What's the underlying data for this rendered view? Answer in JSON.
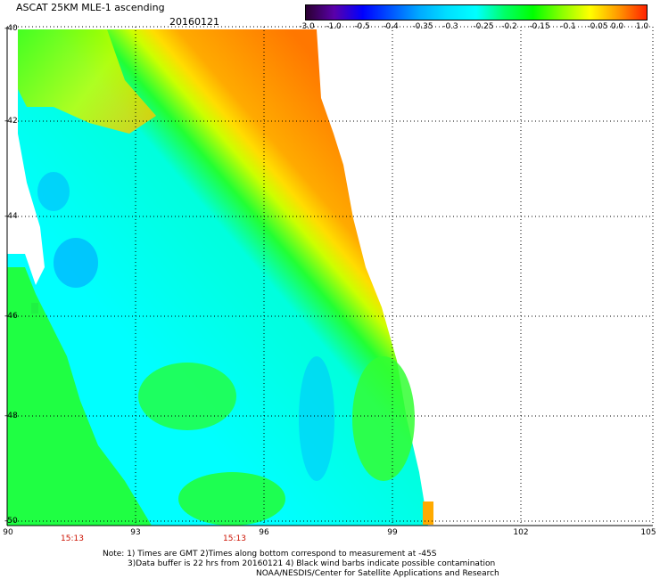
{
  "header": {
    "title": "ASCAT 25KM MLE-1 ascending",
    "date": "20160121"
  },
  "colorbar": {
    "labels": [
      "-3.0",
      "-1.0",
      "-0.5",
      "-0.4",
      "-0.35",
      "-0.3",
      "-0.25",
      "-0.2",
      "-0.15",
      "-0.1",
      "-0.05",
      "0.0",
      "1.0"
    ],
    "colors": [
      "#2a0030",
      "#5a00aa",
      "#0000ff",
      "#0055ff",
      "#00aaff",
      "#00e0ff",
      "#00ffff",
      "#00ff66",
      "#00ff00",
      "#88ff00",
      "#ffff00",
      "#ff9900",
      "#ff2200"
    ]
  },
  "axes": {
    "lat_labels": [
      "-40",
      "-42",
      "-44",
      "-46",
      "-48",
      "-50"
    ],
    "lon_labels": [
      "90",
      "93",
      "96",
      "99",
      "102",
      "105"
    ],
    "time_labels": [
      "15:13",
      "15:13"
    ]
  },
  "notes": {
    "line1": "Note: 1) Times are GMT 2)Times along bottom correspond to measurement at -45S",
    "line2": "3)Data buffer is 22 hrs from 20160121 4) Black wind barbs indicate possible contamination",
    "line3": "NOAA/NESDIS/Center for Satellite Applications and Research"
  },
  "palette": {
    "orange": "#ff8800",
    "yellow": "#ffff00",
    "green": "#33ff00",
    "cyan": "#00ffff",
    "blue": "#0088ff"
  }
}
